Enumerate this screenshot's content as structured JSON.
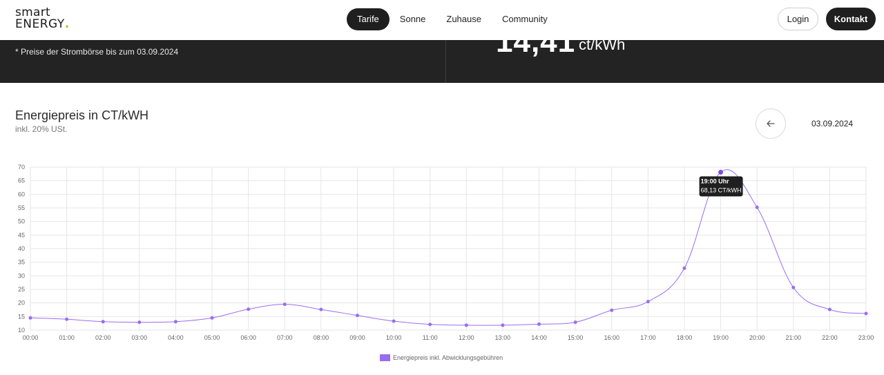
{
  "brand": {
    "line1": "smart",
    "line2": "ENERGY",
    "dot": "."
  },
  "nav": {
    "items": [
      {
        "label": "Tarife",
        "active": true
      },
      {
        "label": "Sonne",
        "active": false
      },
      {
        "label": "Zuhause",
        "active": false
      },
      {
        "label": "Community",
        "active": false
      }
    ],
    "login_label": "Login",
    "contact_label": "Kontakt"
  },
  "band": {
    "note": "* Preise der Strombörse bis zum 03.09.2024",
    "price": "14,41",
    "unit": "ct/kWh"
  },
  "chart_header": {
    "title": "Energiepreis in CT/kWH",
    "subtitle": "inkl. 20% USt.",
    "date": "03.09.2024",
    "back_icon": "arrow-left-icon"
  },
  "colors": {
    "accent": "#9a6cf0",
    "dark": "#1f1f1f",
    "band": "#232323",
    "logo_dot": "#a8c400"
  },
  "chart_data": {
    "type": "line",
    "title": "",
    "xlabel": "",
    "ylabel": "",
    "ylim": [
      10,
      70
    ],
    "yticks": [
      "10",
      "15",
      "20",
      "25",
      "30",
      "35",
      "40",
      "45",
      "50",
      "55",
      "60",
      "65",
      "70"
    ],
    "categories": [
      "00:00",
      "01:00",
      "02:00",
      "03:00",
      "04:00",
      "05:00",
      "06:00",
      "07:00",
      "08:00",
      "09:00",
      "10:00",
      "11:00",
      "12:00",
      "13:00",
      "14:00",
      "15:00",
      "16:00",
      "17:00",
      "18:00",
      "19:00",
      "20:00",
      "21:00",
      "22:00",
      "23:00"
    ],
    "series": [
      {
        "name": "Energiepreis inkl. Abwicklungsgebühren",
        "values": [
          14.5,
          14.0,
          13.1,
          12.9,
          13.1,
          14.5,
          17.7,
          19.5,
          17.6,
          15.4,
          13.3,
          12.1,
          11.8,
          11.8,
          12.2,
          12.9,
          17.3,
          20.5,
          32.8,
          68.13,
          55.2,
          25.7,
          17.6,
          16.1
        ]
      }
    ],
    "grid": true,
    "legend_position": "bottom",
    "tooltip": {
      "title": "19:00 Uhr",
      "value": "68,13 CT/kWH",
      "index": 19
    }
  }
}
